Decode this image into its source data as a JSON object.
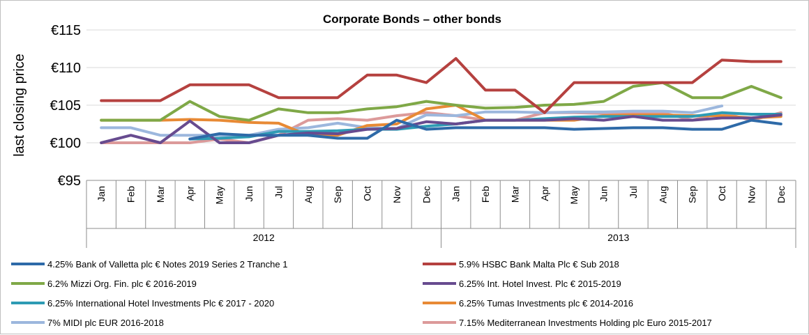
{
  "chart_data": {
    "type": "line",
    "title": "Corporate Bonds – other bonds",
    "ylabel": "last closing price",
    "xlabel": "",
    "ylim": [
      95,
      115
    ],
    "yticks": [
      95,
      100,
      105,
      110,
      115
    ],
    "ytick_labels": [
      "€95",
      "€100",
      "€105",
      "€110",
      "€115"
    ],
    "grid": true,
    "legend_position": "bottom",
    "years": [
      {
        "label": "2012",
        "months": [
          "Jan",
          "Feb",
          "Mar",
          "Apr",
          "May",
          "Jun",
          "Jul",
          "Aug",
          "Sep",
          "Oct",
          "Nov",
          "Dec"
        ]
      },
      {
        "label": "2013",
        "months": [
          "Jan",
          "Feb",
          "Mar",
          "Apr",
          "May",
          "Jun",
          "Jul",
          "Aug",
          "Sep",
          "Oct",
          "Nov",
          "Dec"
        ]
      }
    ],
    "series": [
      {
        "name": "4.25% Bank of Valletta plc € Notes 2019 Series 2 Tranche 1",
        "color": "#2e6aa8",
        "values": [
          null,
          null,
          null,
          100.5,
          101.2,
          101.0,
          101.0,
          101.0,
          100.6,
          100.6,
          103.0,
          101.8,
          102.0,
          102.0,
          102.0,
          102.0,
          101.8,
          101.9,
          102.0,
          102.0,
          101.8,
          101.8,
          103.0,
          102.5
        ]
      },
      {
        "name": "5.9% HSBC Bank Malta Plc € Sub 2018",
        "color": "#b5413f",
        "values": [
          105.6,
          105.6,
          105.6,
          107.7,
          107.7,
          107.7,
          106.0,
          106.0,
          106.0,
          109.0,
          109.0,
          108.0,
          111.2,
          107.0,
          107.0,
          104.0,
          108.0,
          108.0,
          108.0,
          108.0,
          108.0,
          111.0,
          110.8,
          110.8
        ]
      },
      {
        "name": "6.2% Mizzi Org. Fin. plc € 2016-2019",
        "color": "#7fa847",
        "values": [
          103.0,
          103.0,
          103.0,
          105.5,
          103.5,
          103.0,
          104.5,
          104.0,
          104.0,
          104.5,
          104.8,
          105.5,
          105.0,
          104.6,
          104.7,
          105.0,
          105.1,
          105.5,
          107.5,
          108.0,
          106.0,
          106.0,
          107.5,
          106.0
        ]
      },
      {
        "name": "6.25% Int. Hotel Invest. Plc € 2015-2019",
        "color": "#674b8f",
        "values": [
          100.0,
          101.0,
          100.0,
          102.9,
          100.0,
          100.0,
          101.0,
          101.3,
          101.2,
          101.8,
          101.9,
          102.8,
          102.5,
          103.0,
          103.0,
          103.0,
          103.2,
          103.0,
          103.5,
          103.0,
          103.0,
          103.3,
          103.3,
          103.7
        ]
      },
      {
        "name": "6.25% International Hotel Investments Plc € 2017 - 2020",
        "color": "#2e9bb4",
        "values": [
          null,
          null,
          null,
          100.5,
          100.6,
          100.8,
          101.5,
          101.5,
          101.6,
          101.8,
          101.8,
          102.2,
          102.5,
          103.0,
          103.0,
          103.2,
          103.4,
          103.5,
          103.5,
          103.5,
          103.5,
          104.0,
          103.8,
          103.8
        ]
      },
      {
        "name": "6.25% Tumas Investments plc € 2014-2016",
        "color": "#e88a35",
        "values": [
          103.0,
          103.0,
          103.0,
          103.1,
          103.0,
          102.7,
          102.6,
          101.0,
          101.0,
          102.3,
          102.5,
          104.5,
          105.0,
          103.0,
          103.0,
          103.0,
          103.0,
          103.6,
          103.7,
          103.7,
          103.6,
          103.6,
          103.3,
          103.5
        ]
      },
      {
        "name": "7% MIDI plc EUR 2016-2018",
        "color": "#9cb7dd",
        "values": [
          102.0,
          102.0,
          101.0,
          101.0,
          101.0,
          101.0,
          101.8,
          102.0,
          102.6,
          102.0,
          101.9,
          103.7,
          103.6,
          104.1,
          104.1,
          104.0,
          104.1,
          104.1,
          104.2,
          104.2,
          104.0,
          104.9,
          null,
          null
        ]
      },
      {
        "name": "7.15% Mediterranean Investments Holding plc Euro 2015-2017",
        "color": "#dc9a9a",
        "values": [
          100.0,
          100.0,
          100.0,
          100.0,
          100.5,
          100.0,
          101.0,
          103.0,
          103.2,
          103.0,
          103.6,
          104.0,
          103.6,
          103.0,
          103.0,
          104.0,
          104.0,
          103.9,
          103.9,
          104.0,
          103.0,
          104.0,
          103.0,
          104.0
        ]
      }
    ]
  }
}
